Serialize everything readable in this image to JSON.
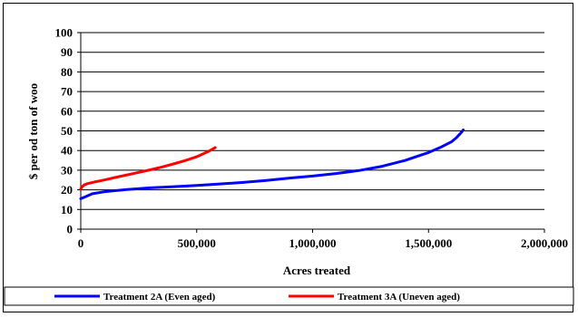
{
  "chart_data": {
    "type": "line",
    "xlabel": "Acres treated",
    "ylabel": "$ per od ton of woo",
    "xlim": [
      0,
      2000000
    ],
    "ylim": [
      0,
      100
    ],
    "x_ticks": [
      0,
      500000,
      1000000,
      1500000,
      2000000
    ],
    "x_tick_labels": [
      "0",
      "500,000",
      "1,000,000",
      "1,500,000",
      "2,000,000"
    ],
    "y_ticks": [
      0,
      10,
      20,
      30,
      40,
      50,
      60,
      70,
      80,
      90,
      100
    ],
    "y_tick_labels": [
      "0",
      "10",
      "20",
      "30",
      "40",
      "50",
      "60",
      "70",
      "80",
      "90",
      "100"
    ],
    "grid": "horizontal",
    "legend_position": "bottom",
    "series": [
      {
        "name": "Treatment 2A (Even aged)",
        "color": "#0000ff",
        "x": [
          0,
          20000,
          50000,
          100000,
          200000,
          300000,
          400000,
          500000,
          600000,
          700000,
          800000,
          900000,
          1000000,
          1100000,
          1200000,
          1300000,
          1400000,
          1450000,
          1500000,
          1550000,
          1600000,
          1620000,
          1640000,
          1650000
        ],
        "y": [
          15.5,
          16.5,
          18,
          19,
          20.2,
          21,
          21.6,
          22.2,
          23,
          23.8,
          24.8,
          26,
          27,
          28.3,
          29.8,
          32,
          35,
          37,
          39,
          41.5,
          44.5,
          46.5,
          49,
          50.5
        ]
      },
      {
        "name": "Treatment 3A (Uneven aged)",
        "color": "#ff0000",
        "x": [
          0,
          5000,
          15000,
          30000,
          60000,
          100000,
          150000,
          200000,
          250000,
          300000,
          350000,
          400000,
          450000,
          500000,
          550000,
          580000
        ],
        "y": [
          20.5,
          21.5,
          22.5,
          23.2,
          24,
          25,
          26.3,
          27.6,
          28.9,
          30.2,
          31.6,
          33.2,
          34.9,
          36.8,
          39.5,
          41.5
        ]
      }
    ]
  }
}
